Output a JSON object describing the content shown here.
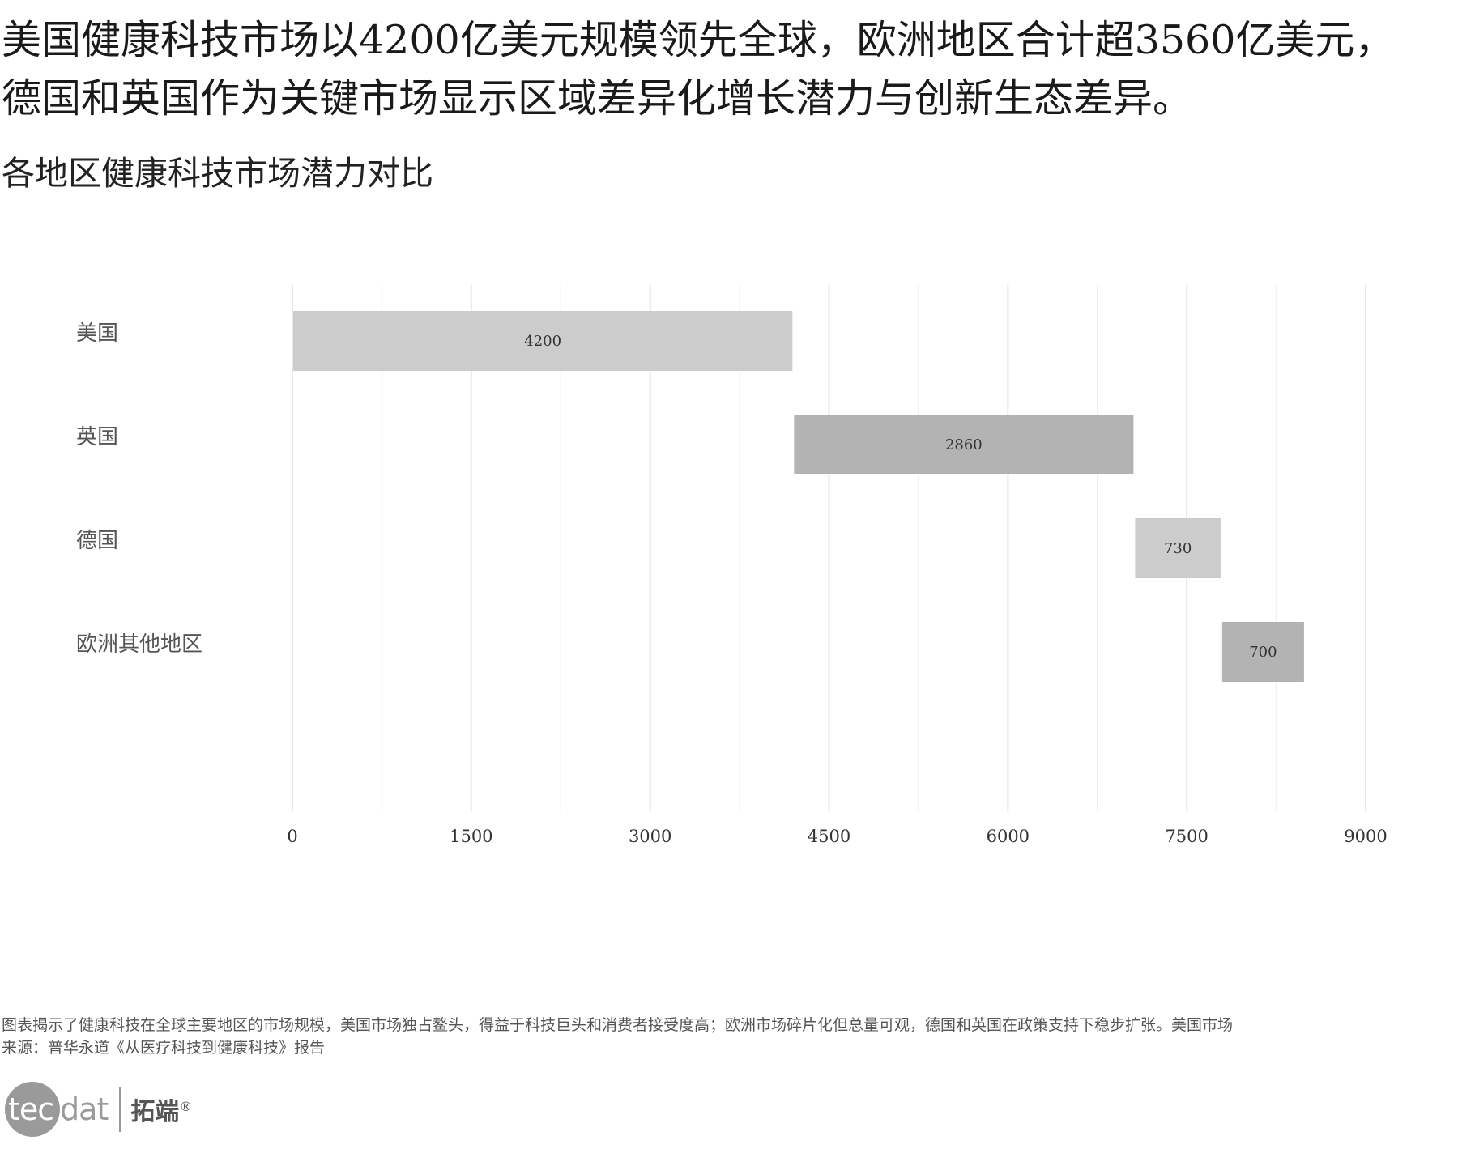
{
  "headline": {
    "line1": "美国健康科技市场以4200亿美元规模领先全球，欧洲地区合计超3560亿美元，",
    "line2": "德国和英国作为关键市场显示区域差异化增长潜力与创新生态差异。"
  },
  "subtitle": "各地区健康科技市场潜力对比",
  "chart_data": {
    "type": "bar",
    "orientation": "horizontal",
    "layout": "waterfall",
    "categories": [
      "美国",
      "英国",
      "德国",
      "欧洲其他地区"
    ],
    "values": [
      4200,
      2860,
      730,
      700
    ],
    "data_labels": [
      "4200",
      "2860",
      "730",
      "700"
    ],
    "bar_colors": [
      "#cccccc",
      "#b3b3b3",
      "#cccccc",
      "#b3b3b3"
    ],
    "xlim": [
      0,
      9000
    ],
    "x_ticks": [
      0,
      1500,
      3000,
      4500,
      6000,
      7500,
      9000
    ],
    "x_tick_labels": [
      "0",
      "1500",
      "3000",
      "4500",
      "6000",
      "7500",
      "9000"
    ],
    "grid": true,
    "legend": "none"
  },
  "footnote": {
    "description": "图表揭示了健康科技在全球主要地区的市场规模，美国市场独占鳌头，得益于科技巨头和消费者接受度高；欧洲市场碎片化但总量可观，德国和英国在政策支持下稳步扩张。美国市场",
    "source": "来源：普华永道《从医疗科技到健康科技》报告"
  },
  "logo": {
    "mark_text_in_circle": "tec",
    "mark_text_tail": "dat",
    "cn_name": "拓端",
    "registered": "®"
  }
}
